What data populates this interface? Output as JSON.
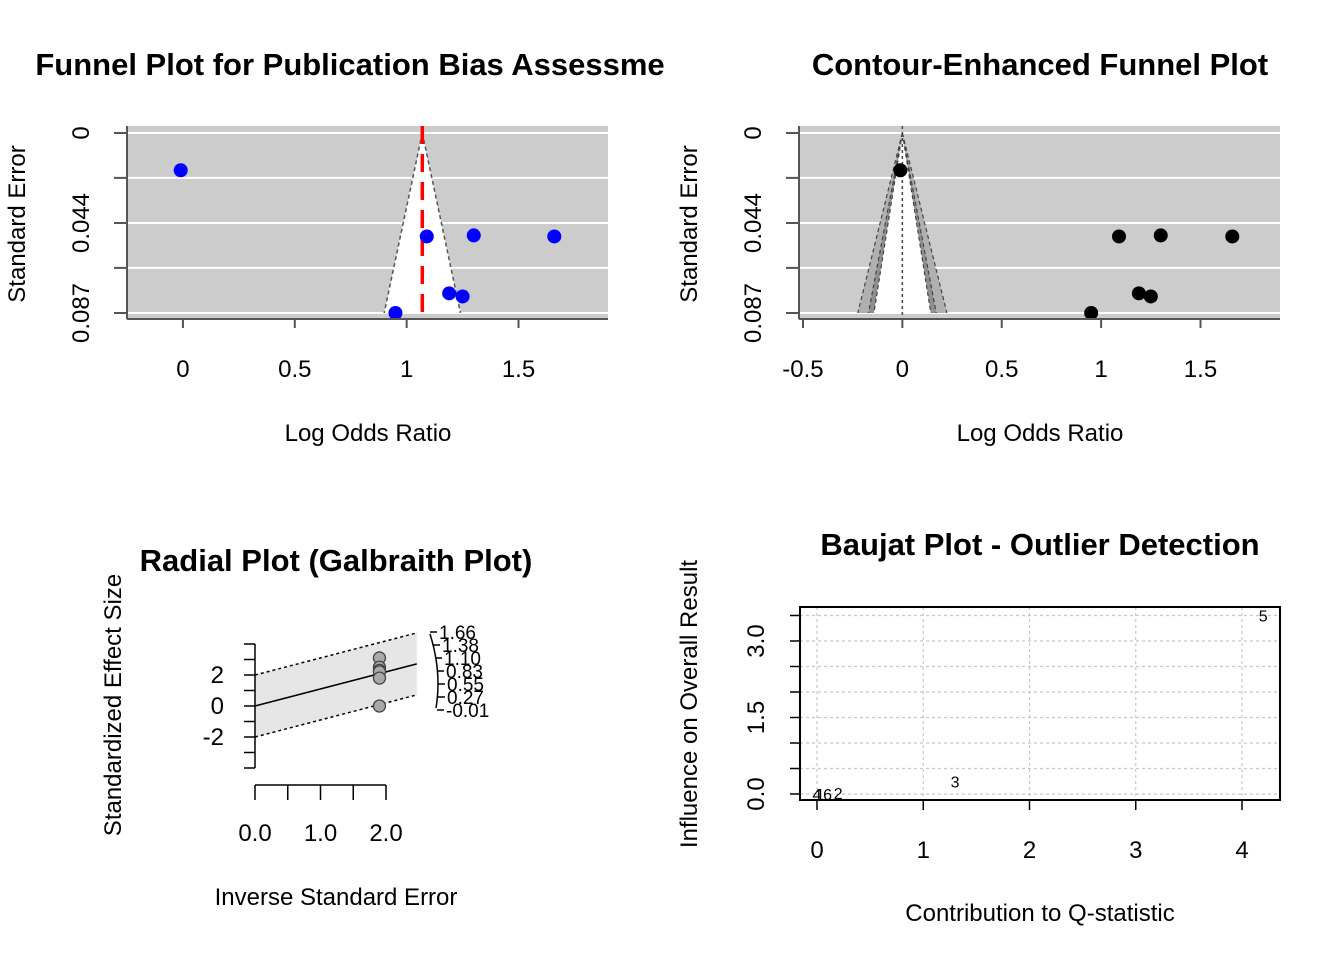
{
  "chart_data": [
    {
      "type": "scatter",
      "subtype": "funnel",
      "title": "Funnel Plot for Publication Bias Assessme",
      "xlabel": "Log Odds Ratio",
      "ylabel": "Standard Error",
      "xlim": [
        -0.25,
        1.9
      ],
      "ylim": [
        0.087,
        0
      ],
      "xticks": [
        0,
        0.5,
        1,
        1.5
      ],
      "xtick_labels": [
        "0",
        "0.5",
        "1",
        "1.5"
      ],
      "yticks": [
        0,
        0.0435,
        0.087
      ],
      "ytick_labels": [
        "0",
        "0.044",
        "0.087"
      ],
      "y_gridlines": [
        0,
        0.0217,
        0.0435,
        0.0652,
        0.087
      ],
      "pooled_estimate": 1.07,
      "background": "#cccccc",
      "point_color": "#0000ff",
      "reference_line_color": "#ff0000",
      "points": [
        {
          "x": -0.01,
          "y": 0.018
        },
        {
          "x": 1.09,
          "y": 0.05
        },
        {
          "x": 1.3,
          "y": 0.0495
        },
        {
          "x": 1.66,
          "y": 0.05
        },
        {
          "x": 1.19,
          "y": 0.0775
        },
        {
          "x": 1.25,
          "y": 0.079
        },
        {
          "x": 0.95,
          "y": 0.087
        }
      ]
    },
    {
      "type": "scatter",
      "subtype": "contour-enhanced funnel",
      "title": "Contour-Enhanced Funnel Plot",
      "xlabel": "Log Odds Ratio",
      "ylabel": "Standard Error",
      "xlim": [
        -0.52,
        1.9
      ],
      "ylim": [
        0.087,
        0
      ],
      "xticks": [
        -0.5,
        0,
        0.5,
        1,
        1.5
      ],
      "xtick_labels": [
        "-0.5",
        "0",
        "0.5",
        "1",
        "1.5"
      ],
      "yticks": [
        0,
        0.0435,
        0.087
      ],
      "ytick_labels": [
        "0",
        "0.044",
        "0.087"
      ],
      "y_gridlines": [
        0,
        0.0217,
        0.0435,
        0.0652,
        0.087
      ],
      "background": "#cccccc",
      "point_color": "#000000",
      "points": [
        {
          "x": -0.01,
          "y": 0.018
        },
        {
          "x": 1.09,
          "y": 0.05
        },
        {
          "x": 1.3,
          "y": 0.0495
        },
        {
          "x": 1.66,
          "y": 0.05
        },
        {
          "x": 1.19,
          "y": 0.0775
        },
        {
          "x": 1.25,
          "y": 0.079
        },
        {
          "x": 0.95,
          "y": 0.087
        }
      ]
    },
    {
      "type": "scatter",
      "subtype": "radial",
      "title": "Radial Plot (Galbraith Plot)",
      "xlabel": "Inverse Standard Error",
      "ylabel": "Standardized Effect Size",
      "xlim": [
        0,
        2.5
      ],
      "ylim": [
        -4,
        4
      ],
      "xticks": [
        0,
        0.5,
        1.0,
        1.5,
        2.0
      ],
      "xtick_labels": [
        "0.0",
        "",
        "1.0",
        "",
        "2.0"
      ],
      "yticks": [
        -4,
        -3,
        -2,
        -1,
        0,
        1,
        2,
        3,
        4
      ],
      "ytick_labels": [
        "",
        "",
        "-2",
        "",
        "0",
        "",
        "2",
        "",
        ""
      ],
      "arc_labels": [
        "1.66",
        "1.38",
        "1.10",
        "0.83",
        "0.55",
        "0.27",
        "-0.01"
      ],
      "points": [
        {
          "x": 1.9,
          "y": 3.1
        },
        {
          "x": 1.9,
          "y": 2.5
        },
        {
          "x": 1.9,
          "y": 2.3
        },
        {
          "x": 1.9,
          "y": 2.2
        },
        {
          "x": 1.9,
          "y": 1.8
        },
        {
          "x": 1.9,
          "y": 0.0
        }
      ],
      "point_color": "#a9a9a9"
    },
    {
      "type": "scatter",
      "subtype": "baujat",
      "title": "Baujat Plot - Outlier Detection",
      "xlabel": "Contribution to Q-statistic",
      "ylabel": "Influence on Overall Result",
      "xlim": [
        -0.15,
        4.35
      ],
      "ylim": [
        -0.1,
        3.7
      ],
      "xticks": [
        0,
        1,
        2,
        3,
        4
      ],
      "xtick_labels": [
        "0",
        "1",
        "2",
        "3",
        "4"
      ],
      "yticks": [
        0,
        0.5,
        1,
        1.5,
        2,
        2.5,
        3,
        3.5
      ],
      "ytick_labels": [
        "0.0",
        "",
        "",
        "1.5",
        "",
        "",
        "3.0",
        ""
      ],
      "grid": true,
      "points": [
        {
          "label": "4",
          "x": 0.0,
          "y": 0.0
        },
        {
          "label": "1",
          "x": 0.03,
          "y": 0.0
        },
        {
          "label": "6",
          "x": 0.1,
          "y": 0.0
        },
        {
          "label": "2",
          "x": 0.2,
          "y": 0.02
        },
        {
          "label": "3",
          "x": 1.3,
          "y": 0.25
        },
        {
          "label": "5",
          "x": 4.2,
          "y": 3.5
        }
      ]
    }
  ]
}
